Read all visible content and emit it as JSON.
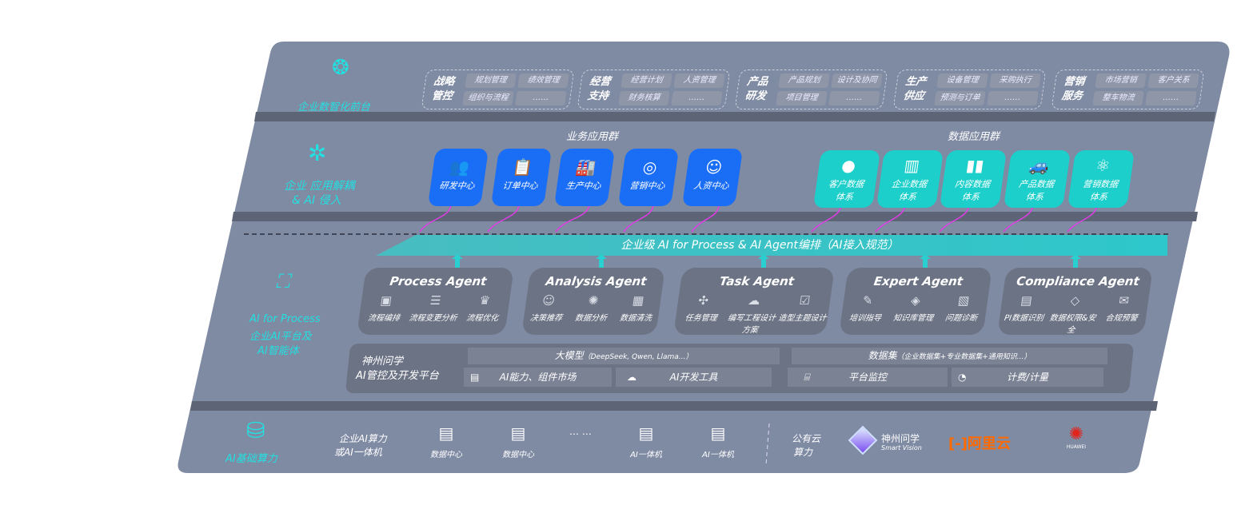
{
  "front": {
    "label": "企业数智化前台",
    "icon": "brain-icon",
    "groups": [
      {
        "title": "战略管控",
        "items": [
          "规划管理",
          "绩效管理",
          "组织与流程",
          "……"
        ]
      },
      {
        "title": "经营支持",
        "items": [
          "经营计划",
          "人资管理",
          "财务核算",
          "……"
        ]
      },
      {
        "title": "产品研发",
        "items": [
          "产品规划",
          "设计及协同",
          "项目管理",
          "……"
        ]
      },
      {
        "title": "生产供应",
        "items": [
          "设备管理",
          "采购执行",
          "预测与订单",
          "……"
        ]
      },
      {
        "title": "营销服务",
        "items": [
          "市场营销",
          "客户关系",
          "整车物流",
          "……"
        ]
      }
    ]
  },
  "apps": {
    "label_line1": "企业 应用解耦",
    "label_line2": "& AI 侵入",
    "business_title": "业务应用群",
    "data_title": "数据应用群",
    "business": [
      {
        "label": "研发中心",
        "icon": "team-icon"
      },
      {
        "label": "订单中心",
        "icon": "clipboard-icon"
      },
      {
        "label": "生产中心",
        "icon": "factory-icon"
      },
      {
        "label": "营销中心",
        "icon": "target-icon"
      },
      {
        "label": "人资中心",
        "icon": "person-icon"
      }
    ],
    "data": [
      {
        "label1": "客户数据",
        "label2": "体系",
        "icon": "user-icon"
      },
      {
        "label1": "企业数据",
        "label2": "体系",
        "icon": "building-icon"
      },
      {
        "label1": "内容数据",
        "label2": "体系",
        "icon": "books-icon"
      },
      {
        "label1": "产品数据",
        "label2": "体系",
        "icon": "car-icon"
      },
      {
        "label1": "营销数据",
        "label2": "体系",
        "icon": "atom-icon"
      }
    ],
    "colors": {
      "business": "#1a6ef5",
      "data": "#1ccfca",
      "connector": "#e03ce6"
    }
  },
  "ai": {
    "label1": "AI for Process",
    "label2": "企业AI平台及",
    "label3": "AI智能体",
    "banner": "企业级 AI for Process & AI Agent编排（AI接入规范）",
    "agents": [
      {
        "name": "Process Agent",
        "items": [
          "流程编排",
          "流程变更分析",
          "流程优化"
        ]
      },
      {
        "name": "Analysis Agent",
        "items": [
          "决策推荐",
          "数据分析",
          "数据清洗"
        ]
      },
      {
        "name": "Task Agent",
        "items": [
          "任务管理",
          "编写工程设计方案",
          "造型主题设计"
        ]
      },
      {
        "name": "Expert Agent",
        "items": [
          "培训指导",
          "知识库管理",
          "问题诊断"
        ]
      },
      {
        "name": "Compliance Agent",
        "items": [
          "PI数据识别",
          "数据权限&安全",
          "合规预警"
        ]
      }
    ],
    "platform": {
      "title1": "神州问学",
      "title2": "AI管控及开发平台",
      "llm": "大模型",
      "llm_note": "（DeepSeek, Qwen, Llama...）",
      "dataset": "数据集",
      "dataset_note": "（企业数据集+专业数据集+通用知识...）",
      "market": "AI能力、组件市场",
      "devtools": "AI开发工具",
      "monitor": "平台监控",
      "billing": "计费/计量"
    }
  },
  "infra": {
    "label": "AI基础算力",
    "enterprise1": "企业AI算力",
    "enterprise2": "或AI一体机",
    "servers": [
      "数据中心",
      "数据中心",
      "AI一体机",
      "AI一体机"
    ],
    "ellipsis": "… …",
    "public1": "公有云",
    "public2": "算力",
    "vendors": {
      "shenzhou": "神州问学",
      "shenzhou_en": "Smart Vision",
      "aliyun": "阿里云",
      "huawei": "HUAWEI"
    }
  }
}
